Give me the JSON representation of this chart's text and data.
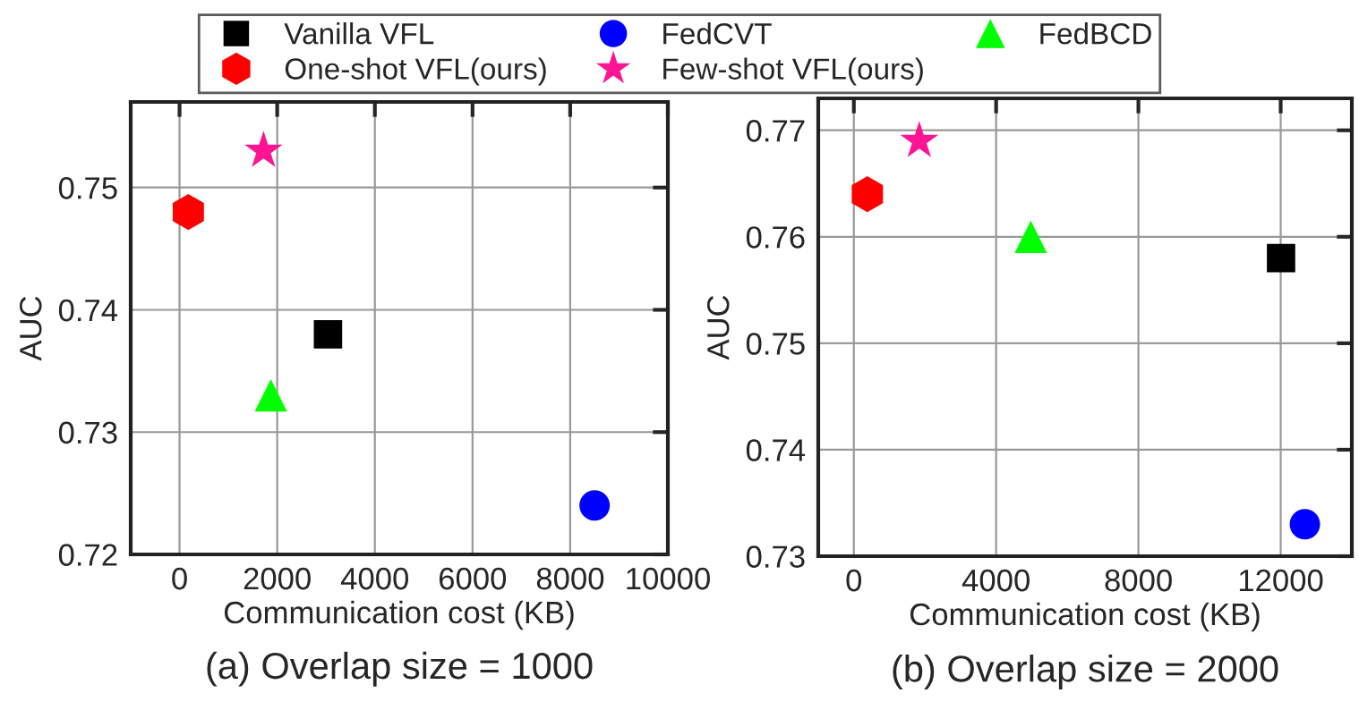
{
  "chart_data": [
    {
      "type": "scatter",
      "title": "(a) Overlap size = 1000",
      "xlabel": "Communication cost (KB)",
      "ylabel": "AUC",
      "xlim": [
        -1000,
        10000
      ],
      "xticks": [
        0,
        2000,
        4000,
        6000,
        8000,
        10000
      ],
      "ylim": [
        0.72,
        0.757
      ],
      "yticks": [
        0.72,
        0.73,
        0.74,
        0.75
      ],
      "grid": true,
      "legend": "top",
      "series": [
        {
          "name": "Vanilla VFL",
          "color": "#000000",
          "marker": "square",
          "x": [
            3040
          ],
          "values": [
            0.738
          ]
        },
        {
          "name": "FedCVT",
          "color": "#0000ff",
          "marker": "circle",
          "x": [
            8500
          ],
          "values": [
            0.724
          ]
        },
        {
          "name": "FedBCD",
          "color": "#00ff00",
          "marker": "triangle",
          "x": [
            1870
          ],
          "values": [
            0.733
          ]
        },
        {
          "name": "One-shot VFL(ours)",
          "color": "#ff0000",
          "x": [
            180
          ],
          "values": [
            0.748
          ]
        },
        {
          "name": "Few-shot VFL(ours)",
          "color": "#ff1493",
          "marker": "star",
          "x": [
            1720
          ],
          "values": [
            0.753
          ]
        }
      ]
    },
    {
      "type": "scatter",
      "title": "(b) Overlap size = 2000",
      "xlabel": "Communication cost (KB)",
      "ylabel": "AUC",
      "xlim": [
        -1000,
        14000
      ],
      "xticks": [
        0,
        4000,
        8000,
        12000
      ],
      "ylim": [
        0.73,
        0.773
      ],
      "yticks": [
        0.73,
        0.74,
        0.75,
        0.76,
        0.77
      ],
      "grid": true,
      "series": [
        {
          "color": "#000000",
          "marker": "square",
          "x": [
            12010
          ],
          "values": [
            0.758
          ]
        },
        {
          "color": "#0000ff",
          "marker": "circle",
          "x": [
            12680
          ],
          "values": [
            0.733
          ]
        },
        {
          "color": "#00ff00",
          "marker": "triangle",
          "x": [
            4975
          ],
          "values": [
            0.76
          ]
        },
        {
          "color": "#ff0000",
          "x": [
            380
          ],
          "values": [
            0.764
          ]
        },
        {
          "color": "#ff1493",
          "marker": "star",
          "x": [
            1840
          ],
          "values": [
            0.769
          ]
        }
      ]
    }
  ]
}
